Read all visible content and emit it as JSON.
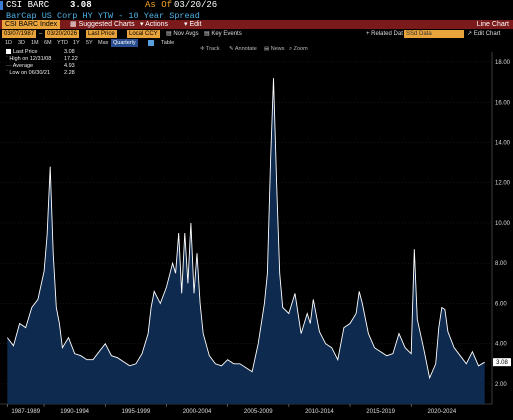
{
  "header": {
    "ticker": "CSI BARC",
    "last_price": "3.08",
    "as_of_label": "As Of",
    "as_of_date": "03/20/26",
    "description": "BarCap US Corp HY YTW - 10 Year Spread"
  },
  "menu": {
    "index_label": "CSI BARC Index",
    "suggested": "Suggested Charts",
    "actions": "Actions",
    "edit": "Edit",
    "chart_type": "Line Chart"
  },
  "options": {
    "start_date": "03/07/1987",
    "end_date": "03/20/2026",
    "field": "Last Price",
    "currency": "Local CCY",
    "nov_avgs": "Nov Avgs",
    "key_events": "Key Events",
    "related": "Related Dat",
    "ssd": "SSd Data",
    "edit_chart": "Edit Chart"
  },
  "periods": {
    "items": [
      "1D",
      "3D",
      "1M",
      "6M",
      "YTD",
      "1Y",
      "5Y",
      "Max"
    ],
    "frequency": "Quarterly",
    "table": "Table"
  },
  "toolbar": {
    "track": "Track",
    "annotate": "Annotate",
    "news": "News",
    "zoom": "Zoom"
  },
  "legend": {
    "last_label": "Last Price",
    "last_value": "3.08",
    "high_label": "High on 12/31/08",
    "high_value": "17.22",
    "avg_label": "Average",
    "avg_value": "4.93",
    "low_label": "Low on 06/30/21",
    "low_value": "2.28"
  },
  "colors": {
    "line": "#ffffff",
    "fill": "#0e2a4f",
    "background": "#000000",
    "grid": "#2b2b2b",
    "last_box": "#ffffff",
    "accent": "#e8a33b"
  },
  "chart_data": {
    "type": "area",
    "ylim": [
      1,
      18.5
    ],
    "yticks": [
      "2.00",
      "4.00",
      "6.00",
      "8.00",
      "10.00",
      "12.00",
      "14.00",
      "16.00",
      "18.00"
    ],
    "xlabels": [
      "1987-1989",
      "1990-1994",
      "1995-1999",
      "2000-2004",
      "2005-2009",
      "2010-2014",
      "2015-2019",
      "2020-2024"
    ],
    "last_value_label": "3.08",
    "x": [
      1987.0,
      1987.5,
      1988.0,
      1988.5,
      1989.0,
      1989.5,
      1990.0,
      1990.25,
      1990.5,
      1990.75,
      1991.0,
      1991.25,
      1991.5,
      1992.0,
      1992.5,
      1993.0,
      1993.5,
      1994.0,
      1994.5,
      1995.0,
      1995.5,
      1996.0,
      1996.5,
      1997.0,
      1997.5,
      1998.0,
      1998.5,
      1998.75,
      1999.0,
      1999.5,
      2000.0,
      2000.5,
      2000.75,
      2001.0,
      2001.25,
      2001.5,
      2001.75,
      2002.0,
      2002.25,
      2002.5,
      2002.75,
      2003.0,
      2003.5,
      2004.0,
      2004.5,
      2005.0,
      2005.5,
      2006.0,
      2006.5,
      2007.0,
      2007.5,
      2008.0,
      2008.25,
      2008.5,
      2008.75,
      2009.0,
      2009.25,
      2009.5,
      2010.0,
      2010.5,
      2011.0,
      2011.5,
      2011.75,
      2012.0,
      2012.5,
      2013.0,
      2013.5,
      2014.0,
      2014.5,
      2015.0,
      2015.5,
      2015.75,
      2016.0,
      2016.5,
      2017.0,
      2017.5,
      2018.0,
      2018.5,
      2019.0,
      2019.5,
      2020.0,
      2020.25,
      2020.5,
      2021.0,
      2021.5,
      2022.0,
      2022.25,
      2022.5,
      2022.75,
      2023.0,
      2023.5,
      2024.0,
      2024.5,
      2025.0,
      2025.5,
      2026.0
    ],
    "values": [
      4.3,
      3.9,
      5.0,
      4.8,
      5.8,
      6.2,
      7.6,
      9.4,
      12.8,
      8.5,
      5.8,
      5.0,
      3.8,
      4.3,
      3.5,
      3.4,
      3.2,
      3.2,
      3.6,
      4.0,
      3.4,
      3.3,
      3.1,
      2.9,
      3.0,
      3.5,
      4.5,
      5.8,
      6.6,
      6.0,
      6.8,
      8.0,
      7.5,
      9.5,
      6.5,
      9.5,
      7.0,
      10.0,
      6.5,
      8.5,
      6.0,
      4.5,
      3.4,
      3.0,
      2.9,
      3.2,
      3.0,
      3.0,
      2.8,
      2.6,
      4.0,
      6.0,
      7.5,
      13.0,
      17.2,
      12.0,
      7.5,
      5.8,
      5.5,
      6.5,
      4.5,
      5.5,
      5.0,
      6.2,
      4.6,
      4.0,
      3.8,
      3.2,
      4.8,
      5.0,
      5.5,
      6.6,
      6.0,
      4.5,
      3.8,
      3.6,
      3.4,
      3.5,
      4.5,
      3.8,
      3.5,
      8.7,
      5.2,
      3.8,
      2.3,
      3.0,
      4.8,
      5.8,
      5.7,
      4.6,
      3.8,
      3.4,
      3.0,
      3.6,
      2.9,
      3.08
    ]
  }
}
